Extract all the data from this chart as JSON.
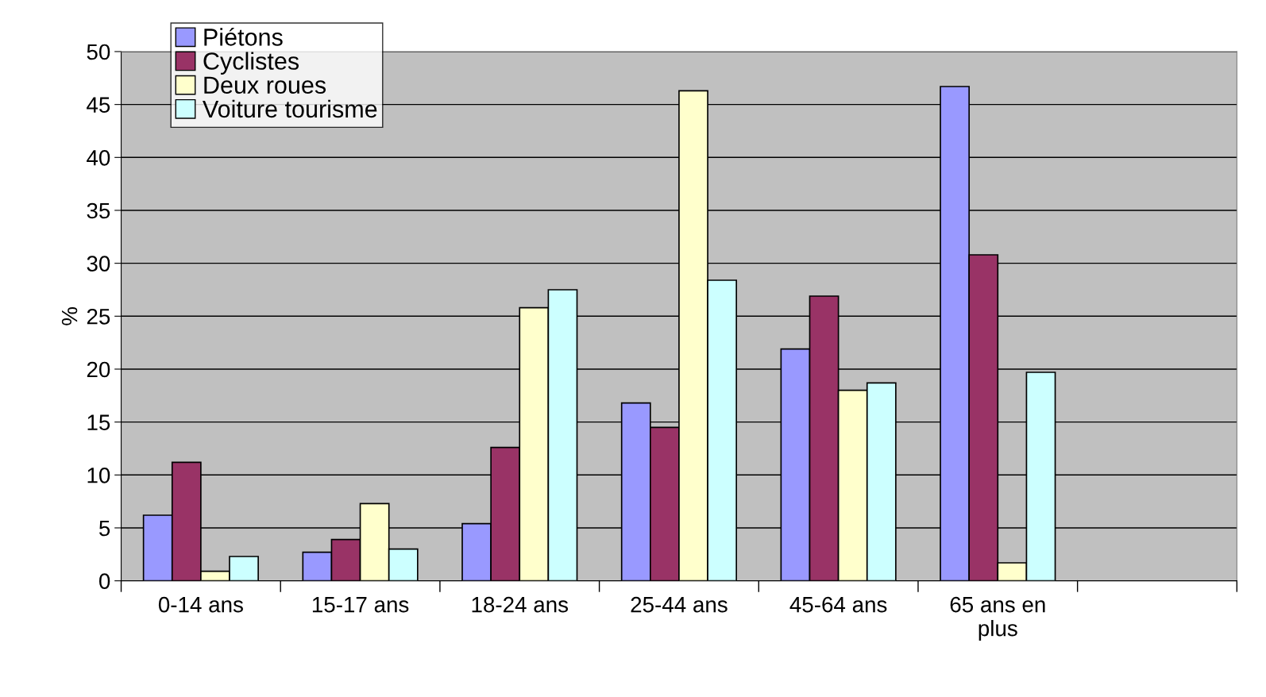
{
  "chart_data": {
    "type": "bar",
    "ylabel": "%",
    "categories": [
      "0-14 ans",
      "15-17 ans",
      "18-24 ans",
      "25-44 ans",
      "45-64 ans",
      "65 ans en\nplus",
      null
    ],
    "series": [
      {
        "name": "Piétons",
        "color": "#9999ff",
        "values": [
          6.2,
          2.7,
          5.4,
          16.8,
          21.9,
          46.7,
          null
        ]
      },
      {
        "name": "Cyclistes",
        "color": "#993366",
        "values": [
          11.2,
          3.9,
          12.6,
          14.5,
          26.9,
          30.8,
          null
        ]
      },
      {
        "name": "Deux roues",
        "color": "#ffffcc",
        "values": [
          0.9,
          7.3,
          25.8,
          46.3,
          18.0,
          1.7,
          null
        ]
      },
      {
        "name": "Voiture tourisme",
        "color": "#ccffff",
        "values": [
          2.3,
          3.0,
          27.5,
          28.4,
          18.7,
          19.7,
          null
        ]
      }
    ],
    "ylim": [
      0,
      50
    ],
    "yticks": [
      0,
      5,
      10,
      15,
      20,
      25,
      30,
      35,
      40,
      45,
      50
    ],
    "grid": "y",
    "legend": "top left"
  }
}
